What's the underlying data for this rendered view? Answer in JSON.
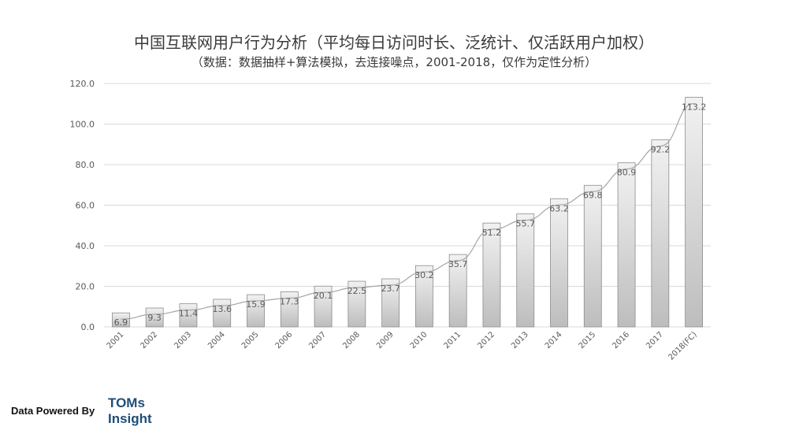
{
  "chart_data": {
    "type": "bar",
    "title": "中国互联网用户行为分析（平均每日访问时长、泛统计、仅活跃用户加权）",
    "subtitle": "（数据：数据抽样+算法模拟，去连接噪点，2001-2018，仅作为定性分析）",
    "categories": [
      "2001",
      "2002",
      "2003",
      "2004",
      "2005",
      "2006",
      "2007",
      "2008",
      "2009",
      "2010",
      "2011",
      "2012",
      "2013",
      "2014",
      "2015",
      "2016",
      "2017",
      "2018(FC)"
    ],
    "values": [
      6.9,
      9.3,
      11.4,
      13.6,
      15.9,
      17.3,
      20.1,
      22.5,
      23.7,
      30.2,
      35.7,
      51.2,
      55.7,
      63.2,
      69.8,
      80.9,
      92.2,
      113.2
    ],
    "data_labels": [
      "6.9",
      "9.3",
      "11.4",
      "13.6",
      "15.9",
      "17.3",
      "20.1",
      "22.5",
      "23.7",
      "30.2",
      "35.7",
      "51.2",
      "55.7",
      "63.2",
      "69.8",
      "80.9",
      "92.2",
      "113.2"
    ],
    "y_ticks": [
      "0.0",
      "20.0",
      "40.0",
      "60.0",
      "80.0",
      "100.0",
      "120.0"
    ],
    "ylim": [
      0,
      120
    ],
    "grid": true,
    "trendline": true,
    "legend": "none",
    "xlabel": "",
    "ylabel": ""
  },
  "footer": {
    "powered_by": "Data Powered By",
    "brand_line1": "TOMs",
    "brand_line2": "Insight"
  },
  "colors": {
    "bar_top": "#f2f2f2",
    "bar_bottom": "#bdbdbd",
    "bar_stroke": "#8c8c8c",
    "grid": "#d9d9d9",
    "trend": "#a6a6a6",
    "label": "#595959",
    "brand": "#1f4e79"
  }
}
